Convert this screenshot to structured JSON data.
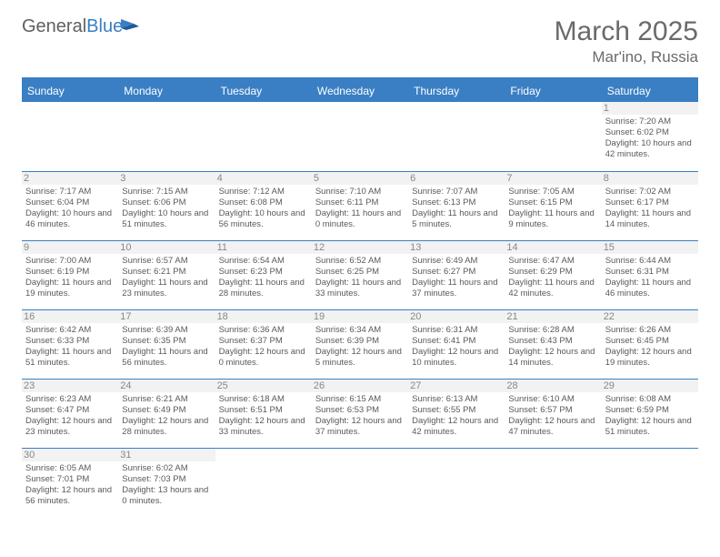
{
  "brand": {
    "part1": "General",
    "part2": "Blue"
  },
  "title": "March 2025",
  "location": "Mar'ino, Russia",
  "colors": {
    "accent": "#3a7fc4",
    "daynum_bg": "#f2f2f2",
    "text": "#4a4a4a",
    "muted": "#6a6a6a"
  },
  "weekdays": [
    "Sunday",
    "Monday",
    "Tuesday",
    "Wednesday",
    "Thursday",
    "Friday",
    "Saturday"
  ],
  "weeks": [
    [
      null,
      null,
      null,
      null,
      null,
      null,
      {
        "d": "1",
        "sr": "7:20 AM",
        "ss": "6:02 PM",
        "dl": "10 hours and 42 minutes."
      }
    ],
    [
      {
        "d": "2",
        "sr": "7:17 AM",
        "ss": "6:04 PM",
        "dl": "10 hours and 46 minutes."
      },
      {
        "d": "3",
        "sr": "7:15 AM",
        "ss": "6:06 PM",
        "dl": "10 hours and 51 minutes."
      },
      {
        "d": "4",
        "sr": "7:12 AM",
        "ss": "6:08 PM",
        "dl": "10 hours and 56 minutes."
      },
      {
        "d": "5",
        "sr": "7:10 AM",
        "ss": "6:11 PM",
        "dl": "11 hours and 0 minutes."
      },
      {
        "d": "6",
        "sr": "7:07 AM",
        "ss": "6:13 PM",
        "dl": "11 hours and 5 minutes."
      },
      {
        "d": "7",
        "sr": "7:05 AM",
        "ss": "6:15 PM",
        "dl": "11 hours and 9 minutes."
      },
      {
        "d": "8",
        "sr": "7:02 AM",
        "ss": "6:17 PM",
        "dl": "11 hours and 14 minutes."
      }
    ],
    [
      {
        "d": "9",
        "sr": "7:00 AM",
        "ss": "6:19 PM",
        "dl": "11 hours and 19 minutes."
      },
      {
        "d": "10",
        "sr": "6:57 AM",
        "ss": "6:21 PM",
        "dl": "11 hours and 23 minutes."
      },
      {
        "d": "11",
        "sr": "6:54 AM",
        "ss": "6:23 PM",
        "dl": "11 hours and 28 minutes."
      },
      {
        "d": "12",
        "sr": "6:52 AM",
        "ss": "6:25 PM",
        "dl": "11 hours and 33 minutes."
      },
      {
        "d": "13",
        "sr": "6:49 AM",
        "ss": "6:27 PM",
        "dl": "11 hours and 37 minutes."
      },
      {
        "d": "14",
        "sr": "6:47 AM",
        "ss": "6:29 PM",
        "dl": "11 hours and 42 minutes."
      },
      {
        "d": "15",
        "sr": "6:44 AM",
        "ss": "6:31 PM",
        "dl": "11 hours and 46 minutes."
      }
    ],
    [
      {
        "d": "16",
        "sr": "6:42 AM",
        "ss": "6:33 PM",
        "dl": "11 hours and 51 minutes."
      },
      {
        "d": "17",
        "sr": "6:39 AM",
        "ss": "6:35 PM",
        "dl": "11 hours and 56 minutes."
      },
      {
        "d": "18",
        "sr": "6:36 AM",
        "ss": "6:37 PM",
        "dl": "12 hours and 0 minutes."
      },
      {
        "d": "19",
        "sr": "6:34 AM",
        "ss": "6:39 PM",
        "dl": "12 hours and 5 minutes."
      },
      {
        "d": "20",
        "sr": "6:31 AM",
        "ss": "6:41 PM",
        "dl": "12 hours and 10 minutes."
      },
      {
        "d": "21",
        "sr": "6:28 AM",
        "ss": "6:43 PM",
        "dl": "12 hours and 14 minutes."
      },
      {
        "d": "22",
        "sr": "6:26 AM",
        "ss": "6:45 PM",
        "dl": "12 hours and 19 minutes."
      }
    ],
    [
      {
        "d": "23",
        "sr": "6:23 AM",
        "ss": "6:47 PM",
        "dl": "12 hours and 23 minutes."
      },
      {
        "d": "24",
        "sr": "6:21 AM",
        "ss": "6:49 PM",
        "dl": "12 hours and 28 minutes."
      },
      {
        "d": "25",
        "sr": "6:18 AM",
        "ss": "6:51 PM",
        "dl": "12 hours and 33 minutes."
      },
      {
        "d": "26",
        "sr": "6:15 AM",
        "ss": "6:53 PM",
        "dl": "12 hours and 37 minutes."
      },
      {
        "d": "27",
        "sr": "6:13 AM",
        "ss": "6:55 PM",
        "dl": "12 hours and 42 minutes."
      },
      {
        "d": "28",
        "sr": "6:10 AM",
        "ss": "6:57 PM",
        "dl": "12 hours and 47 minutes."
      },
      {
        "d": "29",
        "sr": "6:08 AM",
        "ss": "6:59 PM",
        "dl": "12 hours and 51 minutes."
      }
    ],
    [
      {
        "d": "30",
        "sr": "6:05 AM",
        "ss": "7:01 PM",
        "dl": "12 hours and 56 minutes."
      },
      {
        "d": "31",
        "sr": "6:02 AM",
        "ss": "7:03 PM",
        "dl": "13 hours and 0 minutes."
      },
      null,
      null,
      null,
      null,
      null
    ]
  ],
  "labels": {
    "sunrise": "Sunrise:",
    "sunset": "Sunset:",
    "daylight": "Daylight:"
  }
}
